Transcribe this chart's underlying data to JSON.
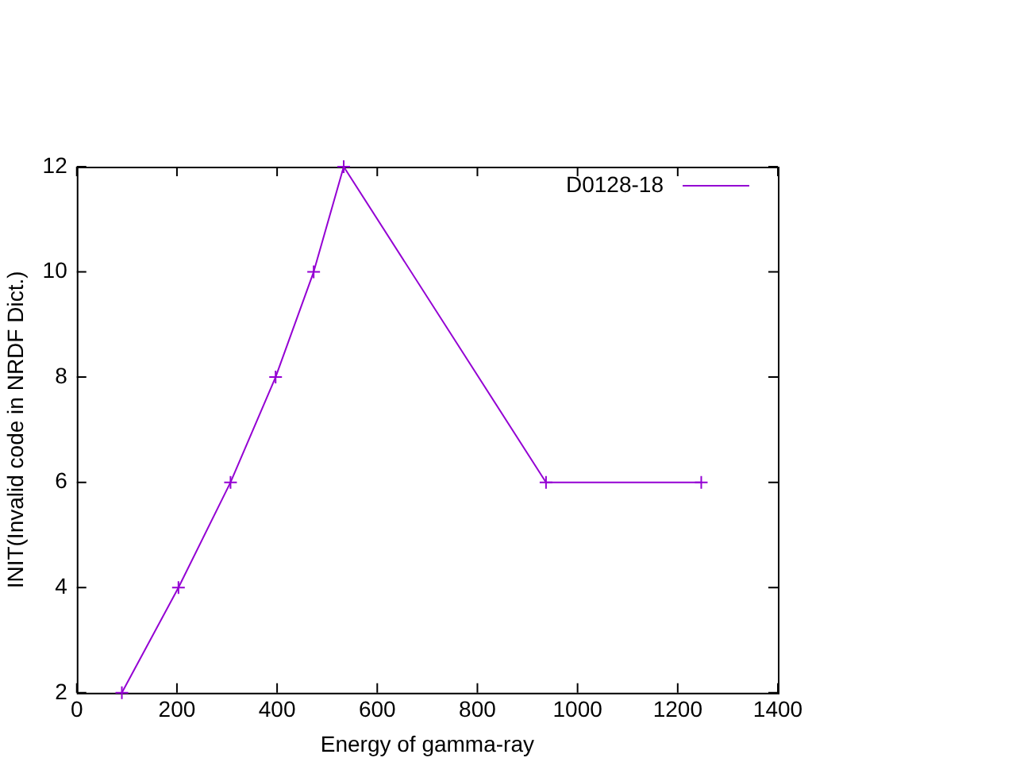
{
  "chart_data": {
    "type": "line",
    "xlabel": "Energy of gamma-ray",
    "ylabel": "INIT(Invalid code in NRDF Dict.)",
    "series": [
      {
        "name": "D0128-18",
        "color": "#9400d3",
        "x": [
          90,
          203,
          307,
          397,
          473,
          533,
          937,
          1247
        ],
        "values": [
          2,
          4,
          6,
          8,
          10,
          12,
          6,
          6
        ]
      }
    ],
    "xlim": [
      0,
      1400
    ],
    "xticks": [
      0,
      200,
      400,
      600,
      800,
      1000,
      1200,
      1400
    ],
    "ylim": [
      2,
      12
    ],
    "yticks": [
      2,
      4,
      6,
      8,
      10,
      12
    ],
    "grid": false,
    "legend": "top right",
    "marker": "cross",
    "line_style": "solid"
  }
}
